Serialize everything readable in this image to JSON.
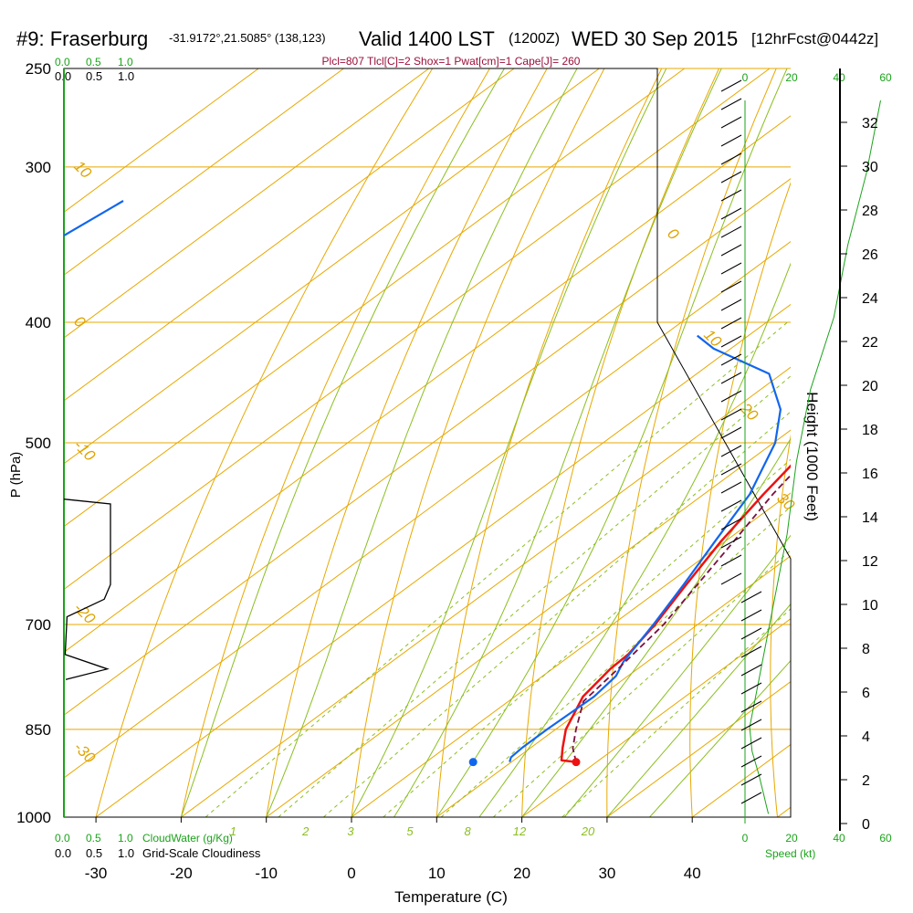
{
  "header": {
    "station": "#9: Fraserburg",
    "coords": "-31.9172°,21.5085° (138,123)",
    "valid": "Valid 1400 LST",
    "utc": "(1200Z)",
    "date": "WED 30 Sep 2015",
    "forecast": "[12hrFcst@0442z]"
  },
  "indices_line": "Plcl=807 Tlcl[C]=2 Shox=1 Pwat[cm]=1 Cape[J]= 260",
  "cloud_scales": {
    "cloudwater_label": "CloudWater (g/Kg)",
    "cloudiness_label": "Grid-Scale Cloudiness",
    "ticks": [
      "0.0",
      "0.5",
      "1.0"
    ]
  },
  "speed_panel": {
    "label": "Speed (kt)",
    "ticks": [
      "0",
      "20",
      "40",
      "60"
    ]
  },
  "colors": {
    "temperature": "#ee1111",
    "dewpoint": "#1166ee",
    "parcel": "#7a1040",
    "isotherm": "#e8a800",
    "mixing_ratio": "#8abf1f",
    "cloud": "#1aa31a"
  },
  "chart_data": {
    "type": "line",
    "title": "",
    "xlabel": "Temperature (C)",
    "ylabel": "P (hPa)",
    "y2label": "Height (1000 Feet)",
    "xlim": [
      -34,
      44
    ],
    "ylim": [
      1000,
      250
    ],
    "x_ticks": [
      "-30",
      "-20",
      "-10",
      "0",
      "10",
      "20",
      "30",
      "40"
    ],
    "pressure_ticks": [
      {
        "p": 1000,
        "label": "1000"
      },
      {
        "p": 850,
        "label": "850"
      },
      {
        "p": 700,
        "label": "700"
      },
      {
        "p": 500,
        "label": "500"
      },
      {
        "p": 400,
        "label": "400"
      },
      {
        "p": 300,
        "label": "300"
      },
      {
        "p": 250,
        "label": "250"
      }
    ],
    "height_ticks": [
      0,
      2,
      4,
      6,
      8,
      10,
      12,
      14,
      16,
      18,
      20,
      22,
      24,
      26,
      28,
      30,
      32
    ],
    "isotherm_labels": [
      {
        "t": -10,
        "label": "-10",
        "p": 503
      },
      {
        "t": 0,
        "label": "0",
        "p": 400
      },
      {
        "t": 10,
        "label": "10",
        "p": 300
      },
      {
        "t": -20,
        "label": "-20",
        "p": 680
      },
      {
        "t": -30,
        "label": "-30",
        "p": 880
      },
      {
        "t": 0,
        "label": "0",
        "p": 340
      },
      {
        "t": 10,
        "label": "10",
        "p": 410
      },
      {
        "t": 20,
        "label": "20",
        "p": 470
      },
      {
        "t": 30,
        "label": "30",
        "p": 555
      }
    ],
    "mixing_ratio_labels": [
      "1",
      "2",
      "3",
      "5",
      "8",
      "12",
      "20"
    ],
    "surface": {
      "p": 903,
      "temperature": 17.6,
      "dewpoint": 9.8
    },
    "series": [
      {
        "key": "temperature",
        "points": [
          [
            903,
            17.6
          ],
          [
            900,
            15.6
          ],
          [
            880,
            13.8
          ],
          [
            850,
            11.2
          ],
          [
            800,
            8.0
          ],
          [
            760,
            6.8
          ],
          [
            740,
            6.6
          ],
          [
            700,
            5.0
          ],
          [
            650,
            2.3
          ],
          [
            600,
            -0.5
          ],
          [
            550,
            -3.0
          ],
          [
            500,
            -5.4
          ],
          [
            450,
            -7.4
          ],
          [
            430,
            -7.9
          ],
          [
            400,
            -7.6
          ],
          [
            350,
            -6.7
          ],
          [
            300,
            -6.4
          ],
          [
            265,
            -6.2
          ]
        ]
      },
      {
        "key": "dewpoint",
        "points": [
          [
            903,
            9.8
          ],
          [
            895,
            9.2
          ],
          [
            880,
            9.0
          ],
          [
            850,
            9.0
          ],
          [
            800,
            9.3
          ],
          [
            770,
            8.6
          ],
          [
            750,
            7.2
          ],
          [
            700,
            4.8
          ],
          [
            650,
            2.0
          ],
          [
            600,
            -1.2
          ],
          [
            550,
            -4.6
          ],
          [
            500,
            -9.8
          ],
          [
            470,
            -14.5
          ],
          [
            440,
            -21.5
          ],
          [
            420,
            -32.0
          ],
          [
            410,
            -36.0
          ]
        ]
      },
      {
        "key": "parcel",
        "points": [
          [
            903,
            17.6
          ],
          [
            880,
            15.0
          ],
          [
            850,
            12.4
          ],
          [
            807,
            8.8
          ],
          [
            760,
            7.7
          ],
          [
            700,
            6.0
          ],
          [
            650,
            3.6
          ],
          [
            600,
            1.0
          ],
          [
            550,
            -1.9
          ],
          [
            500,
            -4.4
          ],
          [
            470,
            -6.1
          ],
          [
            440,
            -7.6
          ]
        ]
      }
    ],
    "upper_dewpoint": [
      [
        323,
        -45
      ],
      [
        305,
        -43
      ],
      [
        295,
        -42.3
      ],
      [
        265,
        -41
      ]
    ],
    "wind_speed_kt": [
      [
        200,
        10
      ],
      [
        400,
        9
      ],
      [
        600,
        8
      ],
      [
        800,
        7
      ],
      [
        1000,
        6
      ],
      [
        1500,
        3
      ],
      [
        2000,
        2
      ],
      [
        3000,
        6
      ],
      [
        4500,
        12
      ],
      [
        6000,
        18
      ],
      [
        7500,
        22
      ],
      [
        9000,
        28
      ],
      [
        10500,
        38
      ],
      [
        12000,
        44
      ],
      [
        13500,
        52
      ],
      [
        15000,
        58
      ]
    ],
    "cloudiness_profile": [
      [
        555,
        0
      ],
      [
        560,
        0.75
      ],
      [
        650,
        0.75
      ],
      [
        668,
        0.65
      ],
      [
        690,
        0.05
      ],
      [
        740,
        0.02
      ],
      [
        760,
        0.7
      ],
      [
        775,
        0.03
      ]
    ]
  }
}
